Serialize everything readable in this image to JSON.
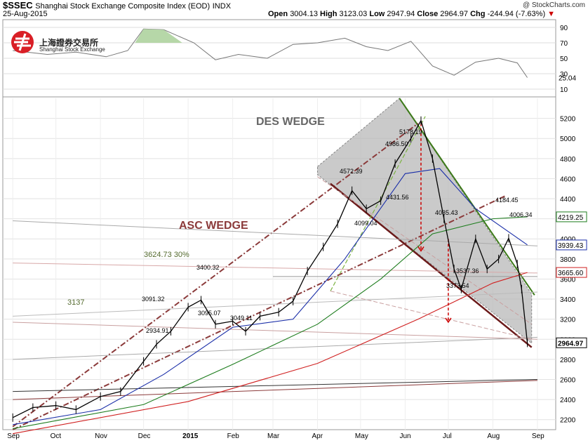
{
  "header": {
    "ticker": "$SSEC",
    "name": "Shanghai Stock Exchange Composite Index (EOD)",
    "exchange": "INDX",
    "date": "25-Aug-2015",
    "open_label": "Open",
    "open": "3004.13",
    "high_label": "High",
    "high": "3123.03",
    "low_label": "Low",
    "low": "2947.94",
    "close_label": "Close",
    "close": "2964.97",
    "chg_label": "Chg",
    "chg": "-244.94 (-7.63%)",
    "credit": "@ StockCharts.com"
  },
  "logo": {
    "cn": "上海證券交易所",
    "en": "Shanghai Stock Exchange"
  },
  "chart_data": [
    {
      "type": "line",
      "panel": "indicator",
      "yticks": [
        90,
        70,
        50,
        30,
        10
      ],
      "last_value": "25.04",
      "x": [
        "2014-09-01",
        "2014-09-25",
        "2014-10-15",
        "2014-11-05",
        "2014-11-20",
        "2014-12-01",
        "2014-12-15",
        "2015-01-05",
        "2015-01-20",
        "2015-02-05",
        "2015-02-25",
        "2015-03-15",
        "2015-04-01",
        "2015-04-20",
        "2015-05-05",
        "2015-05-20",
        "2015-06-05",
        "2015-06-20",
        "2015-07-05",
        "2015-07-20",
        "2015-08-05",
        "2015-08-18",
        "2015-08-25"
      ],
      "values": [
        60,
        55,
        58,
        52,
        60,
        88,
        87,
        70,
        48,
        55,
        50,
        68,
        70,
        76,
        65,
        60,
        72,
        40,
        28,
        45,
        50,
        44,
        25
      ]
    },
    {
      "type": "line",
      "panel": "price",
      "ylim": [
        2100,
        5400
      ],
      "yticks": [
        2200,
        2400,
        2600,
        2800,
        3000,
        3200,
        3400,
        3600,
        3800,
        4000,
        4200,
        4400,
        4600,
        4800,
        5000,
        5200
      ],
      "x_labels": [
        "Sep",
        "Oct",
        "Nov",
        "Dec",
        "2015",
        "Feb",
        "Mar",
        "Apr",
        "May",
        "Jun",
        "Jul",
        "Aug",
        "Sep"
      ],
      "price_series": {
        "dates": [
          "2014-09-01",
          "2014-09-15",
          "2014-10-01",
          "2014-10-15",
          "2014-11-01",
          "2014-11-15",
          "2014-12-01",
          "2014-12-10",
          "2014-12-20",
          "2015-01-01",
          "2015-01-10",
          "2015-01-20",
          "2015-02-01",
          "2015-02-10",
          "2015-02-20",
          "2015-03-05",
          "2015-03-15",
          "2015-03-25",
          "2015-04-05",
          "2015-04-15",
          "2015-04-25",
          "2015-05-05",
          "2015-05-15",
          "2015-05-25",
          "2015-06-05",
          "2015-06-12",
          "2015-06-20",
          "2015-06-28",
          "2015-07-05",
          "2015-07-10",
          "2015-07-20",
          "2015-07-28",
          "2015-08-05",
          "2015-08-12",
          "2015-08-18",
          "2015-08-21",
          "2015-08-25"
        ],
        "values": [
          2220,
          2320,
          2340,
          2300,
          2430,
          2480,
          2780,
          2950,
          3080,
          3320,
          3390,
          3150,
          3180,
          3080,
          3230,
          3270,
          3380,
          3680,
          3920,
          4150,
          4480,
          4300,
          4380,
          4750,
          5000,
          5178,
          4800,
          4200,
          3700,
          3500,
          4000,
          3700,
          3800,
          4006,
          3750,
          3500,
          2964
        ]
      },
      "annotations": [
        "DES WEDGE",
        "ASC WEDGE",
        "3624.73  30%",
        "3137",
        "5178.19",
        "4986.50",
        "4572.39",
        "4431.56",
        "4099.04",
        "4184.45",
        "4035.43",
        "4006.34",
        "3537.36",
        "3373.54",
        "3400.32",
        "3091.32",
        "3095.07",
        "2934.91",
        "3049.11"
      ],
      "right_labels": [
        "4219.25",
        "3939.43",
        "3665.60",
        "2964.97"
      ],
      "colors": {
        "ma_blue": "#1a2ea8",
        "ma_green": "#1e7d1e",
        "ma_red": "#d02020",
        "wedge_brown": "#8b3a3a",
        "des_fill": "#b4b4b4",
        "des_green": "#3d7a1a"
      }
    }
  ]
}
